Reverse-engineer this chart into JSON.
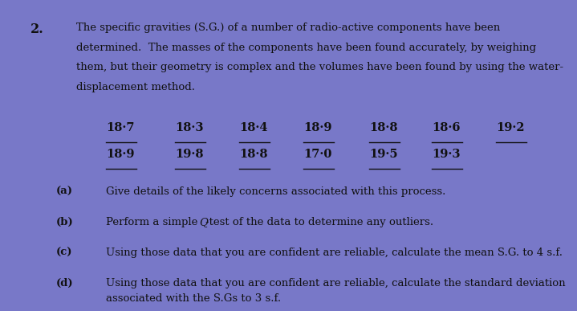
{
  "background_color": "#7878c8",
  "text_color": "#111111",
  "question_number": "2.",
  "intro_lines": [
    "The specific gravities (S.G.) of a number of radio-active components have been",
    "determined.  The masses of the components have been found accurately, by weighing",
    "them, but their geometry is complex and the volumes have been found by using the water-",
    "displacement method."
  ],
  "data_row1": [
    "18·7",
    "18·3",
    "18·4",
    "18·9",
    "18·8",
    "18·6",
    "19·2"
  ],
  "data_row2": [
    "18·9",
    "19·8",
    "18·8",
    "17·0",
    "19·5",
    "19·3"
  ],
  "col_x_inches": [
    1.22,
    2.08,
    2.88,
    3.68,
    4.5,
    5.28,
    6.08
  ],
  "parts": [
    {
      "label": "(a)",
      "text": "Give details of the likely concerns associated with this process.",
      "italic_q": false
    },
    {
      "label": "(b)",
      "text_before": "Perform a simple ",
      "text_q": "Q",
      "text_after": "-test of the data to determine any outliers.",
      "italic_q": true
    },
    {
      "label": "(c)",
      "text": "Using those data that you are confident are reliable, calculate the mean S.G. to 4 s.f.",
      "italic_q": false
    },
    {
      "label": "(d)",
      "text": "Using those data that you are confident are reliable, calculate the standard deviation\nassociated with the S.Gs to 3 s.f.",
      "italic_q": false
    }
  ],
  "intro_fontsize": 9.5,
  "data_fontsize": 10.5,
  "parts_fontsize": 9.5,
  "qnum_fontsize": 11.5,
  "label_fontsize": 9.5
}
